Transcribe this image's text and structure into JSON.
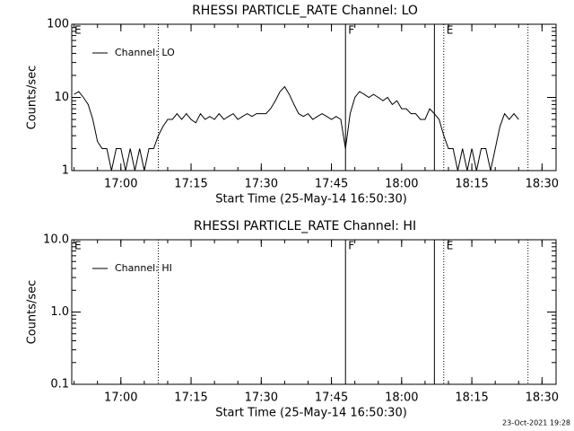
{
  "chart_data": [
    {
      "type": "line",
      "title": "RHESSI PARTICLE_RATE Channel: LO",
      "xlabel": "Start Time (25-May-14 16:50:30)",
      "ylabel": "Counts/sec",
      "log_y": true,
      "legend": "upper left",
      "xlim": [
        "16:49:30",
        "18:33:00"
      ],
      "xticks": [
        "17:00",
        "17:15",
        "17:30",
        "17:45",
        "18:00",
        "18:15",
        "18:30"
      ],
      "ylim": [
        1,
        100
      ],
      "yticks": [
        1,
        10,
        100
      ],
      "markers": [
        {
          "x": "16:49:30",
          "style": "solid",
          "label": "E"
        },
        {
          "x": "17:08",
          "style": "dotted"
        },
        {
          "x": "17:48",
          "style": "solid",
          "label": "F"
        },
        {
          "x": "18:07",
          "style": "solid"
        },
        {
          "x": "18:09",
          "style": "dotted",
          "label": "E"
        },
        {
          "x": "18:27",
          "style": "dotted"
        }
      ],
      "x": [
        "16:50",
        "16:51",
        "16:52",
        "16:53",
        "16:54",
        "16:55",
        "16:56",
        "16:57",
        "16:58",
        "16:59",
        "17:00",
        "17:01",
        "17:02",
        "17:03",
        "17:04",
        "17:05",
        "17:06",
        "17:07",
        "17:08",
        "17:09",
        "17:10",
        "17:11",
        "17:12",
        "17:13",
        "17:14",
        "17:15",
        "17:16",
        "17:17",
        "17:18",
        "17:19",
        "17:20",
        "17:21",
        "17:22",
        "17:23",
        "17:24",
        "17:25",
        "17:26",
        "17:27",
        "17:28",
        "17:29",
        "17:30",
        "17:31",
        "17:32",
        "17:33",
        "17:34",
        "17:35",
        "17:36",
        "17:37",
        "17:38",
        "17:39",
        "17:40",
        "17:41",
        "17:42",
        "17:43",
        "17:44",
        "17:45",
        "17:46",
        "17:47",
        "17:48",
        "17:49",
        "17:50",
        "17:51",
        "17:52",
        "17:53",
        "17:54",
        "17:55",
        "17:56",
        "17:57",
        "17:58",
        "17:59",
        "18:00",
        "18:01",
        "18:02",
        "18:03",
        "18:04",
        "18:05",
        "18:06",
        "18:07",
        "18:08",
        "18:09",
        "18:10",
        "18:11",
        "18:12",
        "18:13",
        "18:14",
        "18:15",
        "18:16",
        "18:17",
        "18:18",
        "18:19",
        "18:20",
        "18:21",
        "18:22",
        "18:23",
        "18:24",
        "18:25"
      ],
      "series": [
        {
          "name": "Channel: LO",
          "color": "#000000",
          "values": [
            11,
            12,
            10,
            8,
            5,
            2.5,
            2,
            2,
            1,
            2,
            2,
            1,
            2,
            1,
            2,
            1,
            2,
            2,
            3,
            4,
            5,
            5,
            6,
            5,
            6,
            5,
            4.5,
            6,
            5,
            5.5,
            5,
            6,
            5,
            5.5,
            6,
            5,
            5.5,
            6,
            5.5,
            6,
            6,
            6,
            7,
            9,
            12,
            14,
            11,
            8,
            6,
            5.5,
            6,
            5,
            5.5,
            6,
            5.5,
            5,
            5.5,
            5,
            2,
            6,
            10,
            12,
            11,
            10,
            11,
            10,
            9,
            10,
            8,
            9,
            7,
            7,
            6,
            6,
            5,
            5,
            7,
            6,
            5,
            3,
            2,
            2,
            1,
            2,
            1,
            2,
            1,
            2,
            2,
            1,
            2,
            4,
            6,
            5,
            6,
            5
          ]
        }
      ]
    },
    {
      "type": "line",
      "title": "RHESSI PARTICLE_RATE Channel: HI",
      "xlabel": "Start Time (25-May-14 16:50:30)",
      "ylabel": "Counts/sec",
      "log_y": true,
      "legend": "upper left",
      "xlim": [
        "16:49:30",
        "18:33:00"
      ],
      "xticks": [
        "17:00",
        "17:15",
        "17:30",
        "17:45",
        "18:00",
        "18:15",
        "18:30"
      ],
      "ylim": [
        0.1,
        10
      ],
      "yticks": [
        0.1,
        {
          "value": 1,
          "label": "1.0"
        },
        {
          "value": 10,
          "label": "10.0"
        }
      ],
      "markers": [
        {
          "x": "16:49:30",
          "style": "solid",
          "label": "E"
        },
        {
          "x": "17:08",
          "style": "dotted"
        },
        {
          "x": "17:48",
          "style": "solid",
          "label": "F"
        },
        {
          "x": "18:07",
          "style": "solid"
        },
        {
          "x": "18:09",
          "style": "dotted",
          "label": "E"
        },
        {
          "x": "18:27",
          "style": "dotted"
        }
      ],
      "x": [],
      "series": [
        {
          "name": "Channel: HI",
          "color": "#000000",
          "values": []
        }
      ]
    }
  ],
  "footer": "23-Oct-2021 19:28"
}
